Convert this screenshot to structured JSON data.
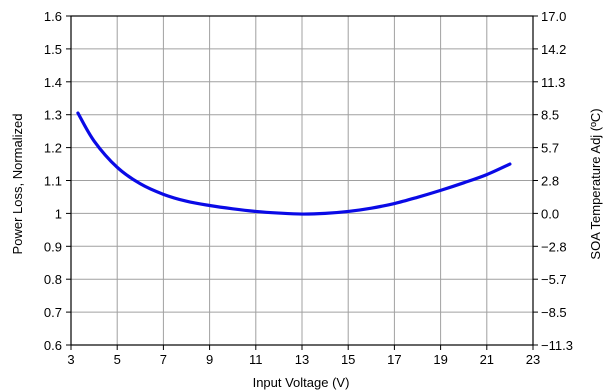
{
  "chart_data": {
    "type": "line",
    "title": "",
    "xlabel": "Input Voltage (V)",
    "ylabel": "Power Loss, Normalized",
    "y2label": "SOA Temperature Adj (ºC)",
    "xlim": [
      3,
      23
    ],
    "ylim": [
      0.6,
      1.6
    ],
    "y2lim": [
      -11.3,
      17.0
    ],
    "grid": true,
    "x_ticks": [
      "3",
      "5",
      "7",
      "9",
      "11",
      "13",
      "15",
      "17",
      "19",
      "21",
      "23"
    ],
    "y_ticks": [
      "0.6",
      "0.7",
      "0.8",
      "0.9",
      "1",
      "1.1",
      "1.2",
      "1.3",
      "1.4",
      "1.5",
      "1.6"
    ],
    "y2_ticks": [
      "−11.3",
      "−8.5",
      "−5.7",
      "−2.8",
      "0.0",
      "2.8",
      "5.7",
      "8.5",
      "11.3",
      "14.2",
      "17.0"
    ],
    "series_color": "#0a0ae6",
    "series": [
      {
        "x": [
          3.3,
          4,
          5,
          6,
          7,
          8,
          9,
          10,
          11,
          12,
          13,
          14,
          15,
          16,
          17,
          18,
          19,
          20,
          21,
          22
        ],
        "values": [
          1.305,
          1.22,
          1.14,
          1.09,
          1.058,
          1.037,
          1.024,
          1.014,
          1.006,
          1.001,
          0.998,
          1.0,
          1.006,
          1.016,
          1.03,
          1.049,
          1.07,
          1.093,
          1.118,
          1.15
        ]
      }
    ]
  }
}
